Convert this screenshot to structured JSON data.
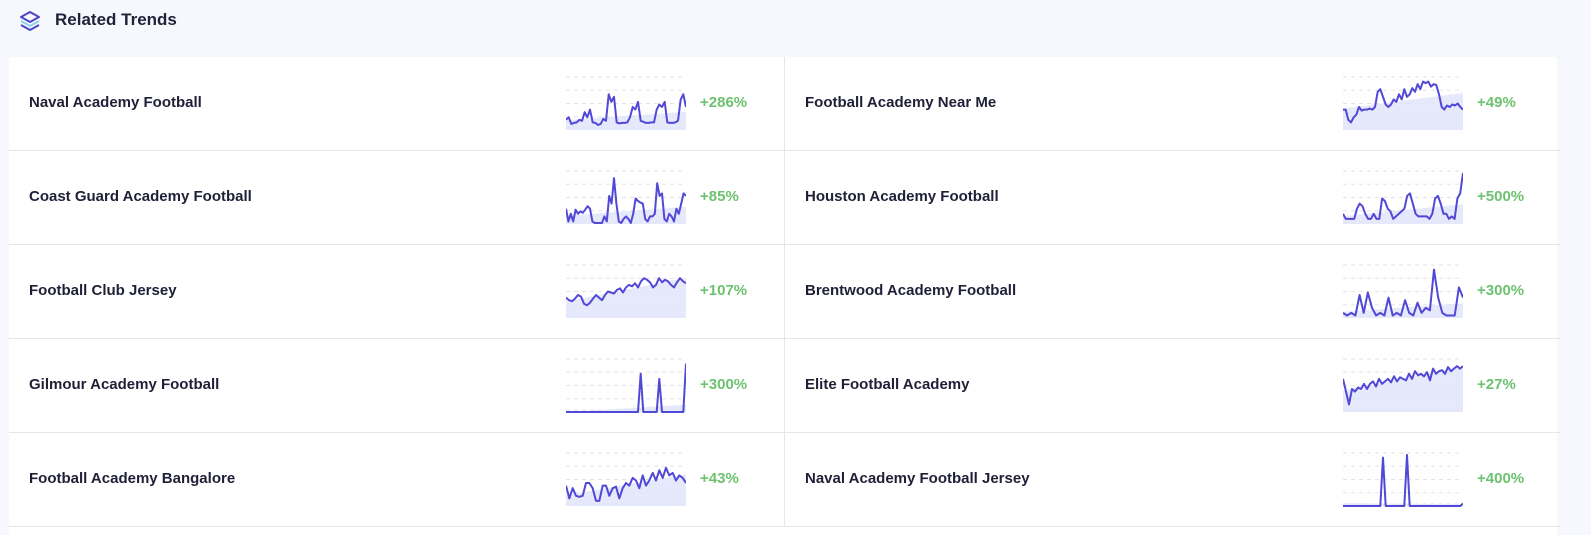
{
  "header": {
    "title": "Related Trends",
    "icon": "layers-icon"
  },
  "colors": {
    "line": "#5148d6",
    "fill": "#dfe4fa",
    "grid": "#e3e3ea",
    "positive": "#6cc26f",
    "icon_dark": "#4a45c9",
    "icon_light": "#8fd3f0"
  },
  "columns": [
    [
      {
        "name": "Naval Academy Football",
        "change": "+286%",
        "series": [
          20,
          25,
          12,
          14,
          15,
          20,
          18,
          35,
          25,
          40,
          15,
          14,
          10,
          12,
          22,
          18,
          70,
          55,
          65,
          15,
          13,
          14,
          14,
          15,
          25,
          45,
          40,
          55,
          18,
          16,
          14,
          14,
          15,
          15,
          40,
          50,
          45,
          55,
          15,
          14,
          14,
          15,
          18,
          60,
          70,
          45
        ]
      },
      {
        "name": "Coast Guard Academy Football",
        "change": "+85%",
        "series": [
          30,
          5,
          20,
          5,
          28,
          20,
          25,
          22,
          28,
          35,
          30,
          5,
          2,
          2,
          2,
          2,
          15,
          5,
          55,
          40,
          90,
          40,
          5,
          2,
          10,
          15,
          10,
          2,
          20,
          50,
          45,
          42,
          40,
          10,
          5,
          15,
          15,
          20,
          80,
          55,
          60,
          10,
          5,
          20,
          15,
          5,
          30,
          20,
          40,
          60,
          55
        ]
      },
      {
        "name": "Football Club Jersey",
        "change": "+107%",
        "series": [
          40,
          35,
          33,
          38,
          45,
          42,
          28,
          25,
          30,
          38,
          45,
          40,
          35,
          45,
          52,
          50,
          48,
          55,
          58,
          50,
          60,
          65,
          62,
          68,
          60,
          72,
          78,
          75,
          70,
          60,
          65,
          78,
          70,
          75,
          72,
          65,
          60,
          70,
          78,
          72,
          68
        ]
      },
      {
        "name": "Gilmour Academy Football",
        "change": "+300%",
        "series": [
          0,
          0,
          0,
          0,
          0,
          0,
          0,
          0,
          0,
          0,
          0,
          0,
          0,
          0,
          0,
          0,
          0,
          0,
          0,
          0,
          0,
          0,
          0,
          0,
          0,
          0,
          0,
          0,
          75,
          0,
          0,
          0,
          0,
          0,
          0,
          65,
          0,
          0,
          0,
          0,
          0,
          0,
          0,
          0,
          0,
          95
        ]
      },
      {
        "name": "Football Academy Bangalore",
        "change": "+43%",
        "series": [
          40,
          15,
          35,
          20,
          18,
          20,
          45,
          45,
          35,
          10,
          10,
          40,
          40,
          20,
          35,
          38,
          15,
          35,
          45,
          40,
          55,
          50,
          35,
          60,
          40,
          50,
          65,
          50,
          70,
          55,
          75,
          60,
          65,
          50,
          60,
          55,
          45
        ]
      }
    ],
    [
      {
        "name": "Football Academy Near Me",
        "change": "+49%",
        "series": [
          40,
          40,
          20,
          15,
          25,
          30,
          45,
          38,
          40,
          40,
          42,
          40,
          45,
          75,
          80,
          65,
          50,
          45,
          50,
          60,
          55,
          70,
          60,
          80,
          65,
          70,
          82,
          75,
          90,
          80,
          95,
          92,
          95,
          85,
          90,
          88,
          70,
          45,
          40,
          48,
          45,
          50,
          48,
          52,
          45,
          40
        ]
      },
      {
        "name": "Houston Academy Football",
        "change": "+500%",
        "series": [
          20,
          10,
          10,
          10,
          10,
          30,
          40,
          35,
          20,
          10,
          10,
          20,
          10,
          10,
          50,
          45,
          30,
          25,
          10,
          15,
          20,
          25,
          30,
          55,
          60,
          40,
          20,
          15,
          15,
          15,
          15,
          10,
          20,
          50,
          55,
          40,
          20,
          20,
          10,
          15,
          10,
          50,
          60,
          100
        ]
      },
      {
        "name": "Brentwood Academy Football",
        "change": "+300%",
        "series": [
          10,
          5,
          10,
          5,
          45,
          10,
          50,
          20,
          5,
          10,
          5,
          40,
          5,
          10,
          5,
          35,
          10,
          5,
          30,
          10,
          20,
          15,
          95,
          40,
          10,
          5,
          5,
          5,
          60,
          40
        ]
      },
      {
        "name": "Elite Football Academy",
        "change": "+27%",
        "series": [
          65,
          40,
          15,
          45,
          40,
          48,
          45,
          55,
          45,
          55,
          60,
          50,
          65,
          55,
          60,
          65,
          58,
          70,
          60,
          68,
          65,
          62,
          75,
          65,
          80,
          72,
          75,
          70,
          78,
          62,
          85,
          75,
          80,
          82,
          75,
          88,
          80,
          85,
          90,
          85,
          90
        ]
      },
      {
        "name": "Naval Academy Football Jersey",
        "change": "+400%",
        "series": [
          0,
          0,
          0,
          0,
          0,
          0,
          0,
          0,
          0,
          0,
          0,
          0,
          0,
          0,
          0,
          95,
          0,
          0,
          0,
          0,
          0,
          0,
          0,
          0,
          100,
          0,
          0,
          0,
          0,
          0,
          0,
          0,
          0,
          0,
          0,
          0,
          0,
          0,
          0,
          0,
          0,
          0,
          0,
          0,
          0,
          5
        ]
      }
    ]
  ]
}
